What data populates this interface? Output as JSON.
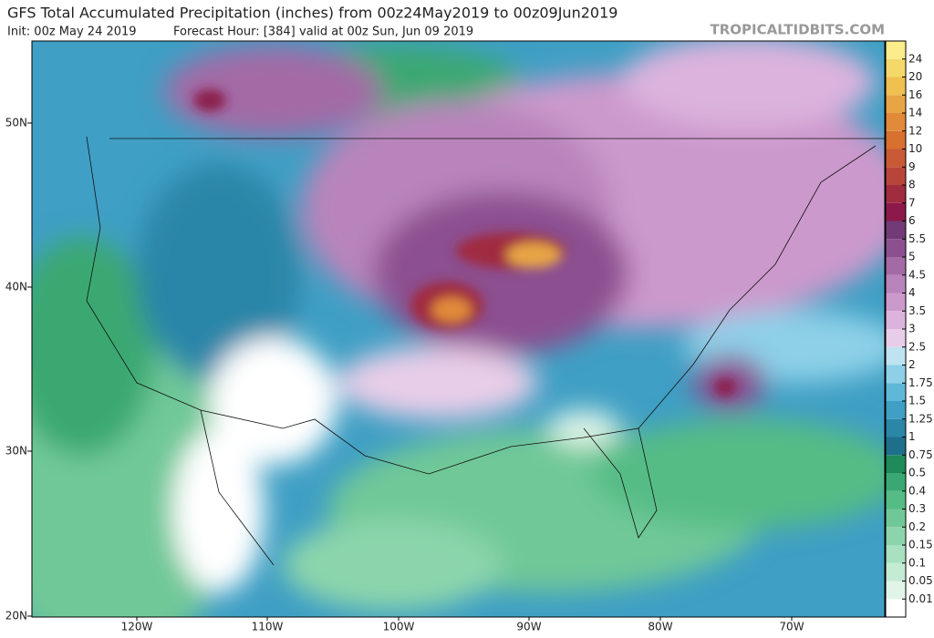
{
  "header": {
    "title": "GFS Total Accumulated Precipitation (inches) from 00z24May2019 to 00z09Jun2019",
    "subtitle": [
      "Init: 00z May 24 2019",
      "Forecast Hour: [384]",
      "valid at 00z Sun, Jun 09 2019"
    ],
    "brand": "TROPICALTIDBITS.COM"
  },
  "map": {
    "lat_labels": [
      "50N",
      "40N",
      "30N",
      "20N"
    ],
    "lon_labels": [
      "120W",
      "110W",
      "100W",
      "90W",
      "80W",
      "70W"
    ]
  },
  "colorbar": {
    "levels": [
      0.01,
      0.05,
      0.1,
      0.15,
      0.2,
      0.3,
      0.4,
      0.5,
      0.75,
      1,
      1.25,
      1.5,
      1.75,
      2,
      2.5,
      3,
      3.5,
      4,
      4.5,
      5,
      5.5,
      6,
      7,
      8,
      9,
      10,
      12,
      14,
      16,
      20,
      24
    ],
    "colors": [
      "#ffffff",
      "#e0f5e8",
      "#c4ebd4",
      "#a8e0c0",
      "#8cd5ac",
      "#70c898",
      "#55bc85",
      "#3aa872",
      "#1f8a5a",
      "#1e6f8c",
      "#2b86a8",
      "#3f9fc4",
      "#5fb8d8",
      "#8dd0e8",
      "#bfe3f0",
      "#e8cde8",
      "#dcb3dd",
      "#cc99cc",
      "#b884bb",
      "#a36aa6",
      "#8c5090",
      "#733a78",
      "#8b1a4a",
      "#a02c40",
      "#b8453a",
      "#c85a35",
      "#d87030",
      "#e08a3a",
      "#e8a545",
      "#f0c050",
      "#f5d86a",
      "#fbec8c"
    ]
  }
}
